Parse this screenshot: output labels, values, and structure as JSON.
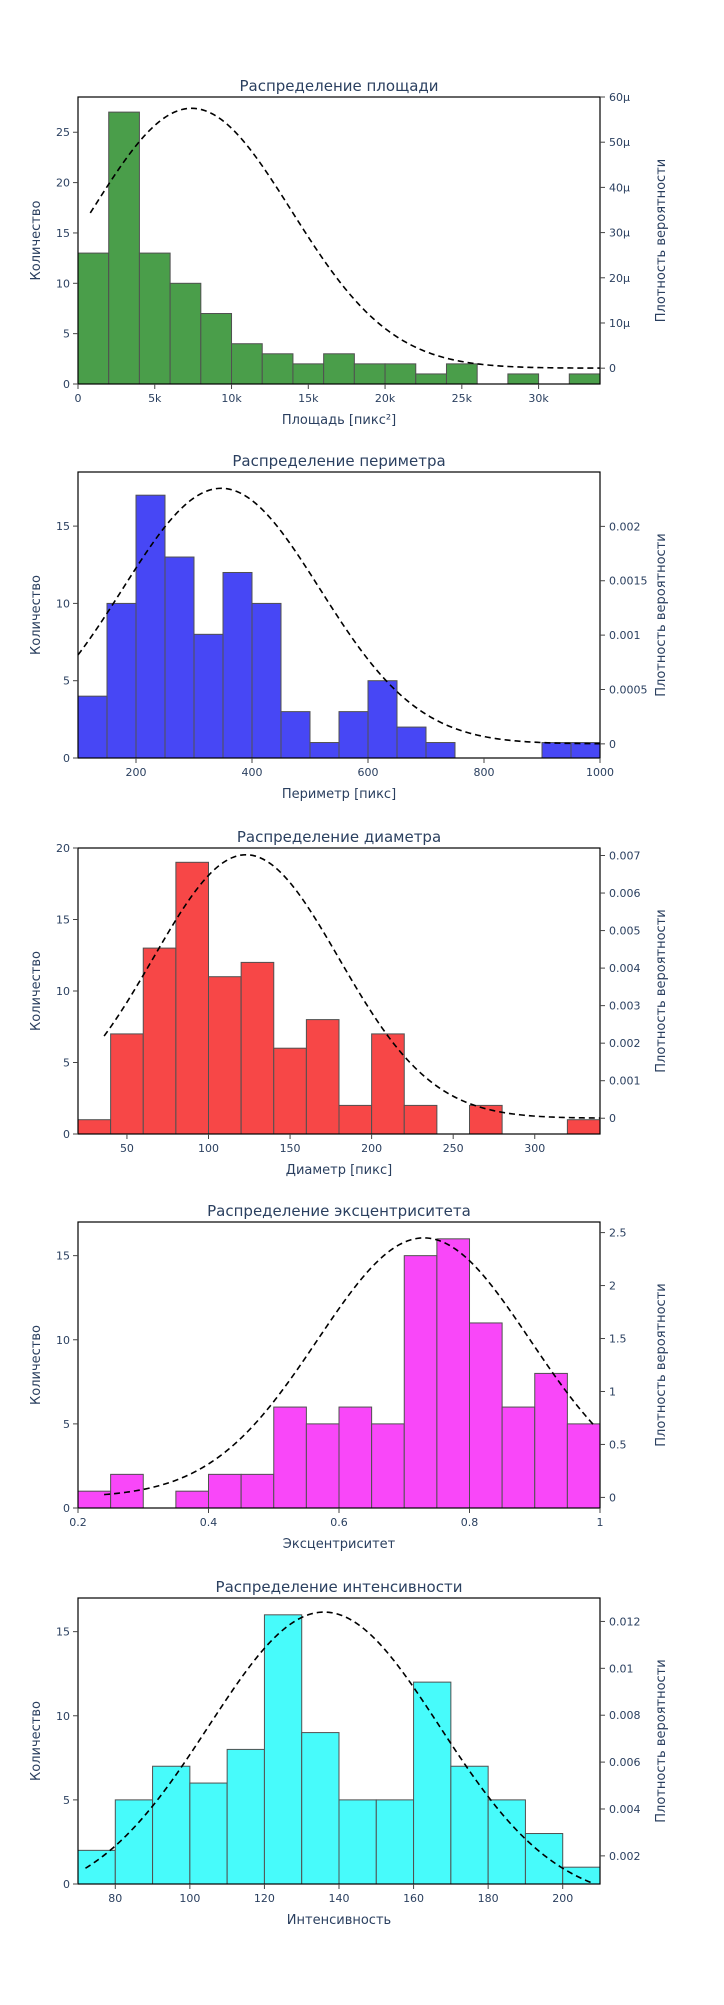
{
  "chart_data": [
    {
      "type": "bar",
      "title": "Распределение площади",
      "xlabel": "Площадь [пикс²]",
      "ylabel": "Количество",
      "y2label": "Плотность вероятности",
      "bar_color": "#4a9e4a",
      "xlim": [
        0,
        34000
      ],
      "ylim": [
        0,
        28.5
      ],
      "y2lim": [
        -3.5e-06,
        6e-05
      ],
      "x_ticks": [
        0,
        5000,
        10000,
        15000,
        20000,
        25000,
        30000
      ],
      "x_tick_labels": [
        "0",
        "5k",
        "10k",
        "15k",
        "20k",
        "25k",
        "30k"
      ],
      "y_ticks": [
        0,
        5,
        10,
        15,
        20,
        25
      ],
      "y_tick_labels": [
        "0",
        "5",
        "10",
        "15",
        "20",
        "25"
      ],
      "y2_ticks": [
        0,
        1e-05,
        2e-05,
        3e-05,
        4e-05,
        5e-05,
        6e-05
      ],
      "y2_tick_labels": [
        "0",
        "10μ",
        "20μ",
        "30μ",
        "40μ",
        "50μ",
        "60μ"
      ],
      "bin_edges": [
        0,
        2000,
        4000,
        6000,
        8000,
        10000,
        12000,
        14000,
        16000,
        18000,
        20000,
        22000,
        24000,
        26000,
        28000,
        30000,
        32000,
        34000
      ],
      "values": [
        13,
        27,
        13,
        10,
        7,
        4,
        3,
        2,
        3,
        2,
        2,
        1,
        2,
        0,
        1,
        0,
        1
      ],
      "pdf": {
        "mean": 7400,
        "std": 6500,
        "amplitude": 5.75e-05,
        "x_start": 800,
        "x_end": 34000
      }
    },
    {
      "type": "bar",
      "title": "Распределение периметра",
      "xlabel": "Периметр [пикс]",
      "ylabel": "Количество",
      "y2label": "Плотность вероятности",
      "bar_color": "#4747f5",
      "xlim": [
        100,
        1000
      ],
      "ylim": [
        0,
        18.5
      ],
      "y2lim": [
        -0.00013,
        0.0025
      ],
      "x_ticks": [
        200,
        400,
        600,
        800,
        1000
      ],
      "x_tick_labels": [
        "200",
        "400",
        "600",
        "800",
        "1000"
      ],
      "y_ticks": [
        0,
        5,
        10,
        15
      ],
      "y_tick_labels": [
        "0",
        "5",
        "10",
        "15"
      ],
      "y2_ticks": [
        0,
        0.0005,
        0.001,
        0.0015,
        0.002
      ],
      "y2_tick_labels": [
        "0",
        "0.0005",
        "0.001",
        "0.0015",
        "0.002"
      ],
      "bin_edges": [
        100,
        150,
        200,
        250,
        300,
        350,
        400,
        450,
        500,
        550,
        600,
        650,
        700,
        750,
        800,
        850,
        900,
        950,
        1000
      ],
      "values": [
        4,
        10,
        17,
        13,
        8,
        12,
        10,
        3,
        1,
        3,
        5,
        2,
        1,
        0,
        0,
        0,
        1,
        1
      ],
      "pdf": {
        "mean": 347,
        "std": 170,
        "amplitude": 0.00235,
        "x_start": 100,
        "x_end": 1000
      }
    },
    {
      "type": "bar",
      "title": "Распределение диаметра",
      "xlabel": "Диаметр [пикс]",
      "ylabel": "Количество",
      "y2label": "Плотность вероятности",
      "bar_color": "#f74747",
      "xlim": [
        20,
        340
      ],
      "ylim": [
        0,
        20
      ],
      "y2lim": [
        -0.00042,
        0.0072
      ],
      "x_ticks": [
        50,
        100,
        150,
        200,
        250,
        300
      ],
      "x_tick_labels": [
        "50",
        "100",
        "150",
        "200",
        "250",
        "300"
      ],
      "y_ticks": [
        0,
        5,
        10,
        15,
        20
      ],
      "y_tick_labels": [
        "0",
        "5",
        "10",
        "15",
        "20"
      ],
      "y2_ticks": [
        0,
        0.001,
        0.002,
        0.003,
        0.004,
        0.005,
        0.006,
        0.007
      ],
      "y2_tick_labels": [
        "0",
        "0.001",
        "0.002",
        "0.003",
        "0.004",
        "0.005",
        "0.006",
        "0.007"
      ],
      "bin_edges": [
        20,
        40,
        60,
        80,
        100,
        120,
        140,
        160,
        180,
        200,
        220,
        240,
        260,
        280,
        300,
        320,
        340
      ],
      "values": [
        1,
        7,
        13,
        19,
        11,
        12,
        6,
        8,
        2,
        7,
        2,
        0,
        2,
        0,
        0,
        1
      ],
      "pdf": {
        "mean": 123,
        "std": 57,
        "amplitude": 0.00702,
        "x_start": 36,
        "x_end": 340
      }
    },
    {
      "type": "bar",
      "title": "Распределение эксцентриситета",
      "xlabel": "Эксцентриситет",
      "ylabel": "Количество",
      "y2label": "Плотность вероятности",
      "bar_color": "#f947f9",
      "xlim": [
        0.2,
        1
      ],
      "ylim": [
        0,
        17
      ],
      "y2lim": [
        -0.1,
        2.6
      ],
      "x_ticks": [
        0.2,
        0.4,
        0.6,
        0.8,
        1
      ],
      "x_tick_labels": [
        "0.2",
        "0.4",
        "0.6",
        "0.8",
        "1"
      ],
      "y_ticks": [
        0,
        5,
        10,
        15
      ],
      "y_tick_labels": [
        "0",
        "5",
        "10",
        "15"
      ],
      "y2_ticks": [
        0,
        0.5,
        1,
        1.5,
        2,
        2.5
      ],
      "y2_tick_labels": [
        "0",
        "0.5",
        "1",
        "1.5",
        "2",
        "2.5"
      ],
      "bin_edges": [
        0.2,
        0.25,
        0.3,
        0.35,
        0.4,
        0.45,
        0.5,
        0.55,
        0.6,
        0.65,
        0.7,
        0.75,
        0.8,
        0.85,
        0.9,
        0.95,
        1.0
      ],
      "values": [
        1,
        2,
        0,
        1,
        2,
        2,
        6,
        5,
        6,
        5,
        15,
        16,
        11,
        6,
        8,
        5
      ],
      "pdf": {
        "mean": 0.73,
        "std": 0.163,
        "amplitude": 2.45,
        "x_start": 0.24,
        "x_end": 0.99
      }
    },
    {
      "type": "bar",
      "title": "Распределение интенсивности",
      "xlabel": "Интенсивность",
      "ylabel": "Количество",
      "y2label": "Плотность вероятности",
      "bar_color": "#47fbfb",
      "xlim": [
        70,
        210
      ],
      "ylim": [
        0,
        17
      ],
      "y2lim": [
        0.0008,
        0.013
      ],
      "x_ticks": [
        80,
        100,
        120,
        140,
        160,
        180,
        200
      ],
      "x_tick_labels": [
        "80",
        "100",
        "120",
        "140",
        "160",
        "180",
        "200"
      ],
      "y_ticks": [
        0,
        5,
        10,
        15
      ],
      "y_tick_labels": [
        "0",
        "5",
        "10",
        "15"
      ],
      "y2_ticks": [
        0.002,
        0.004,
        0.006,
        0.008,
        0.01,
        0.012
      ],
      "y2_tick_labels": [
        "0.002",
        "0.004",
        "0.006",
        "0.008",
        "0.01",
        "0.012"
      ],
      "bin_edges": [
        70,
        80,
        90,
        100,
        110,
        120,
        130,
        140,
        150,
        160,
        170,
        180,
        190,
        200,
        210
      ],
      "values": [
        2,
        5,
        7,
        6,
        8,
        16,
        9,
        5,
        5,
        12,
        7,
        5,
        3,
        1
      ],
      "pdf": {
        "mean": 136,
        "std": 31,
        "amplitude": 0.0124,
        "x_start": 72,
        "x_end": 208
      }
    }
  ]
}
